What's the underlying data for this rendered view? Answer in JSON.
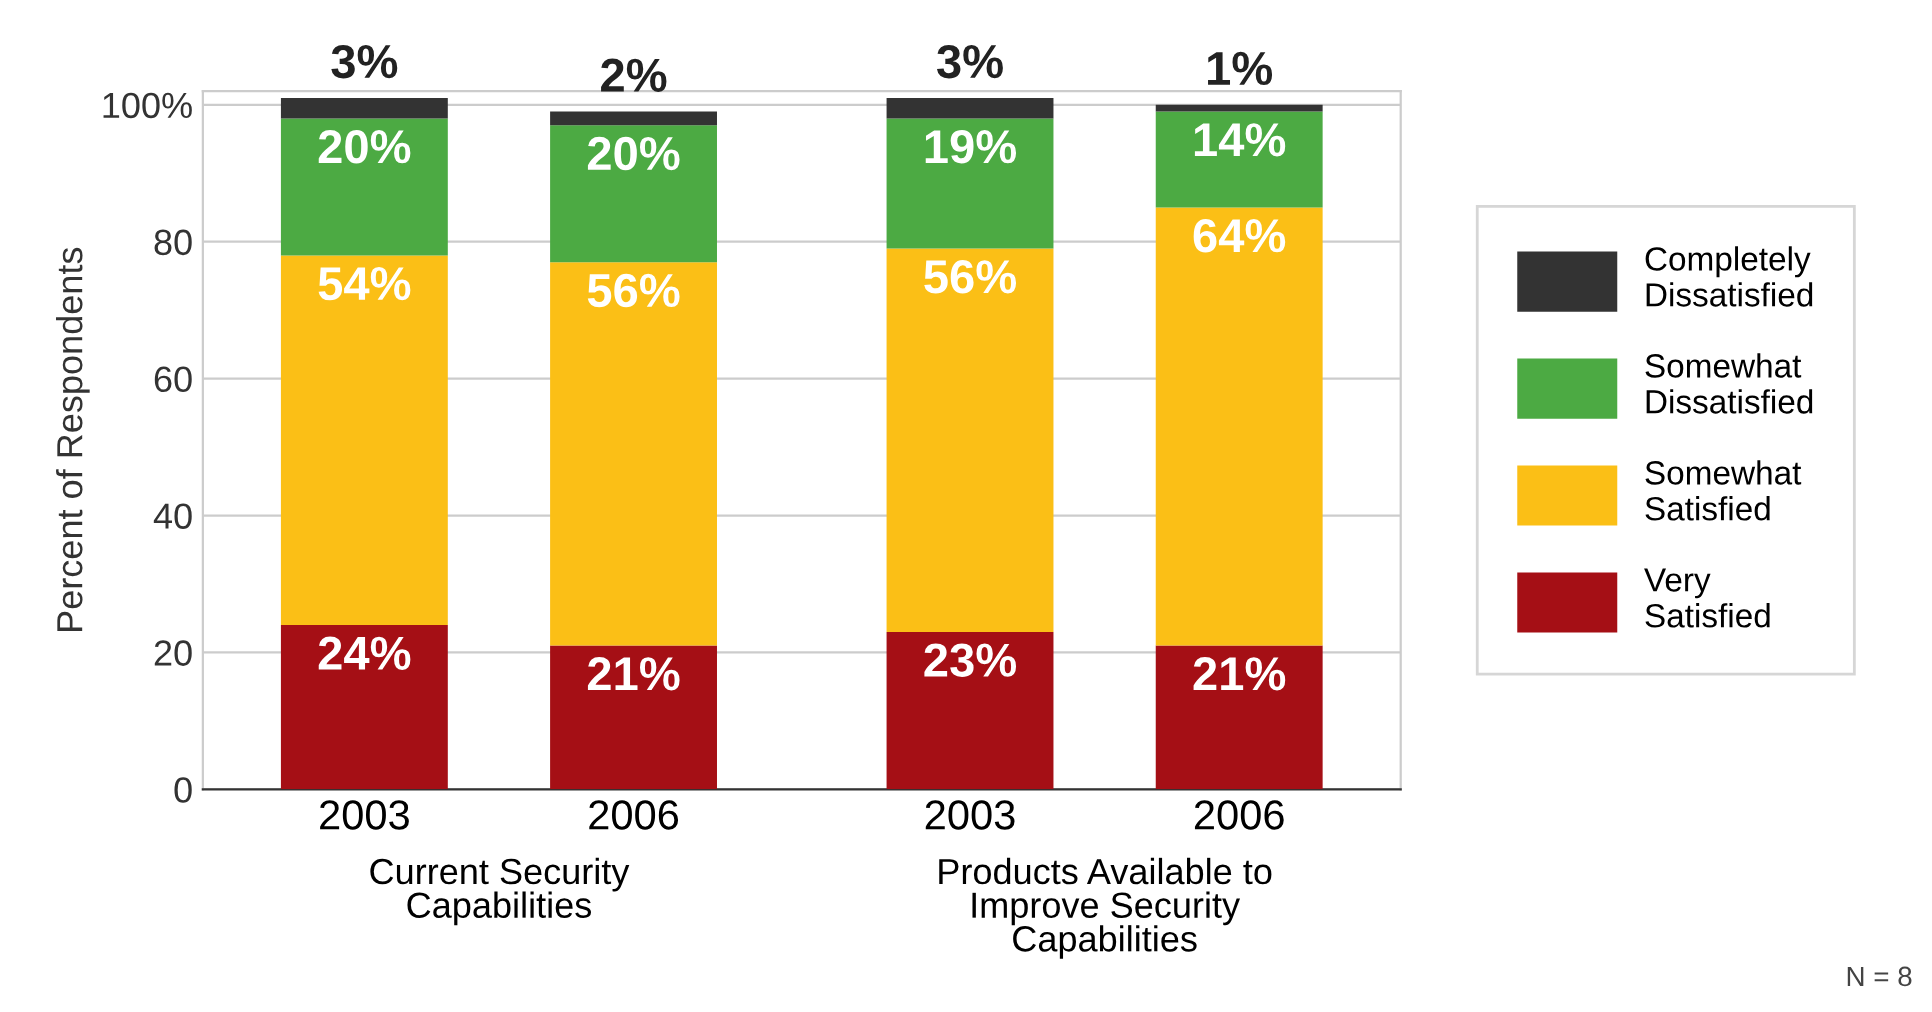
{
  "chart_data": {
    "type": "bar",
    "stacked": true,
    "categories": [
      "2003",
      "2006",
      "2003",
      "2006"
    ],
    "ylabel": "Percent of Respondents",
    "ylim": [
      0,
      102
    ],
    "yticks": [
      0,
      20,
      40,
      60,
      80,
      {
        "value": 100,
        "label": "100%"
      }
    ],
    "grid": "y",
    "legend": "right",
    "series": [
      {
        "name": "Very Satisfied",
        "color": "#a50f15",
        "values": [
          24,
          21,
          23,
          21
        ],
        "value_labels": [
          "24%",
          "21%",
          "23%",
          "21%"
        ]
      },
      {
        "name": "Somewhat Satisfied",
        "color": "#fbbf16",
        "values": [
          54,
          56,
          56,
          64
        ],
        "value_labels": [
          "54%",
          "56%",
          "56%",
          "64%"
        ]
      },
      {
        "name": "Somewhat Dissatisfied",
        "color": "#4caa43",
        "values": [
          20,
          20,
          19,
          14
        ],
        "value_labels": [
          "20%",
          "20%",
          "19%",
          "14%"
        ]
      },
      {
        "name": "Completely Dissatisfied",
        "color": "#333333",
        "values": [
          3,
          2,
          3,
          1
        ],
        "value_labels": [
          "3%",
          "2%",
          "3%",
          "1%"
        ]
      }
    ],
    "annotations": [
      "Current Security Capabilities",
      "Products Available to Improve Security Capabilities",
      "N = 8"
    ]
  }
}
